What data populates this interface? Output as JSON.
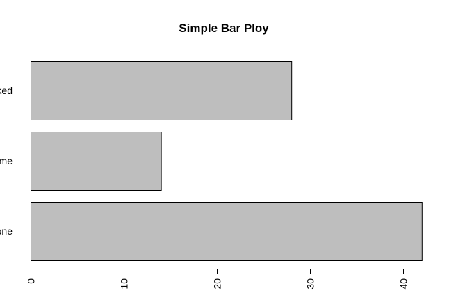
{
  "chart_data": {
    "type": "bar",
    "orientation": "horizontal",
    "title": "Simple Bar Ploy",
    "xlabel": "",
    "ylabel": "",
    "categories": [
      "None",
      "Some",
      "Marked"
    ],
    "values": [
      42,
      14,
      28
    ],
    "xlim": [
      0,
      42
    ],
    "x_ticks": [
      "0",
      "10",
      "20",
      "30",
      "40"
    ],
    "grid": false,
    "bar_color": "#bebebe",
    "border_color": "#000000"
  }
}
